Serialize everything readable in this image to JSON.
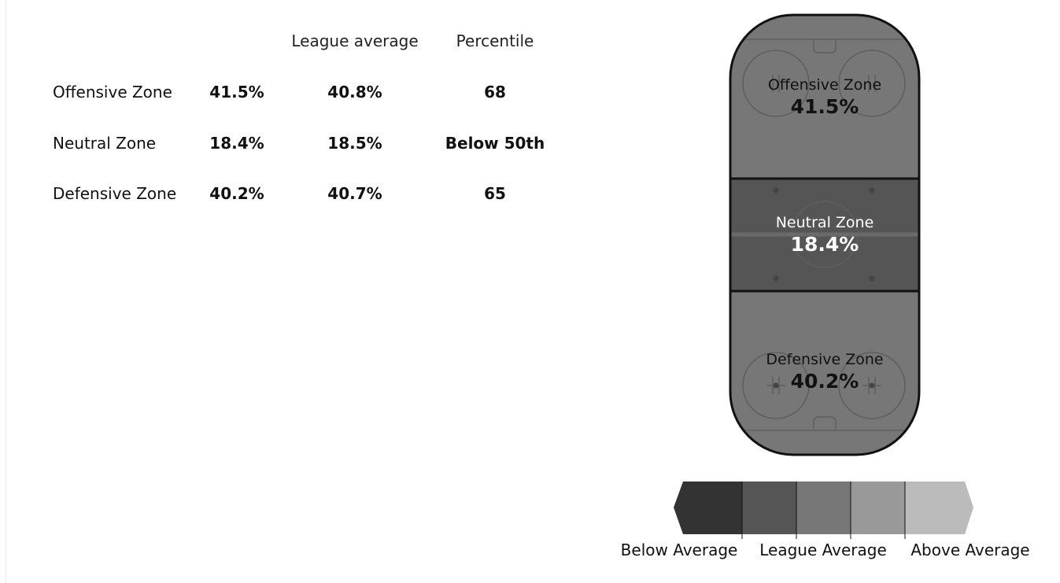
{
  "table": {
    "headers": {
      "league_average": "League average",
      "percentile": "Percentile"
    },
    "rows": [
      {
        "zone": "Offensive Zone",
        "value": "41.5%",
        "league_average": "40.8%",
        "percentile": "68"
      },
      {
        "zone": "Neutral Zone",
        "value": "18.4%",
        "league_average": "18.5%",
        "percentile": "Below 50th"
      },
      {
        "zone": "Defensive Zone",
        "value": "40.2%",
        "league_average": "40.7%",
        "percentile": "65"
      }
    ]
  },
  "rink": {
    "zones": [
      {
        "label": "Offensive Zone",
        "value": "41.5%",
        "fill": "#777777"
      },
      {
        "label": "Neutral Zone",
        "value": "18.4%",
        "fill": "#555555"
      },
      {
        "label": "Defensive Zone",
        "value": "40.2%",
        "fill": "#777777"
      }
    ]
  },
  "legend": {
    "labels": [
      "Below Average",
      "League Average",
      "Above Average"
    ],
    "colors": [
      "#333333",
      "#555555",
      "#777777",
      "#999999",
      "#bbbbbb"
    ]
  }
}
